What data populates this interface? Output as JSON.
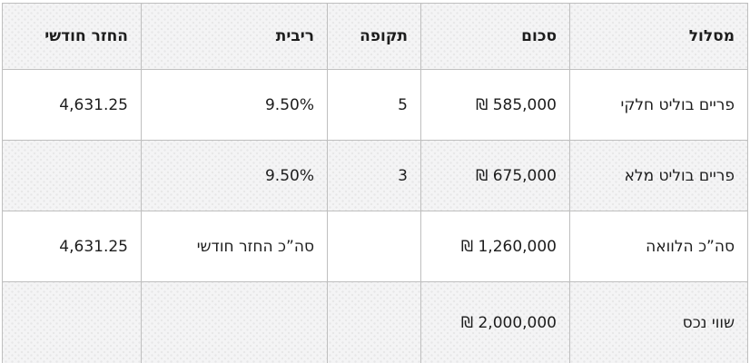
{
  "chart_data": {
    "type": "table",
    "direction": "rtl",
    "columns": [
      "מסלול",
      "סכום",
      "תקופה",
      "ריבית",
      "החזר חודשי"
    ],
    "rows": [
      [
        "פריים בוליט חלקי",
        "585,000 ₪",
        "5",
        "9.50%",
        "4,631.25"
      ],
      [
        "פריים בוליט מלא",
        "675,000 ₪",
        "3",
        "9.50%",
        ""
      ],
      [
        "סה”כ הלוואה",
        "1,260,000 ₪",
        "",
        "סה”כ החזר חודשי",
        "4,631.25"
      ],
      [
        "שווי נכס",
        "2,000,000 ₪",
        "",
        "",
        ""
      ]
    ],
    "currency_symbol": "₪",
    "layout": {
      "striped": true,
      "header_background": "#f4f4f5",
      "stripe_background": "#f4f4f5",
      "border_color": "#bfbfbf",
      "text_color": "#1d1d1d"
    }
  }
}
